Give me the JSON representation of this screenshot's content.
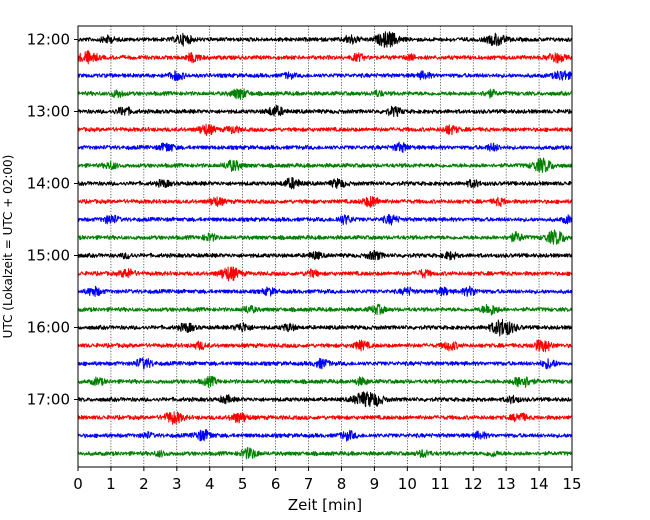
{
  "chart_data": {
    "type": "line",
    "subtype": "helicorder",
    "xlabel": "Zeit  [min]",
    "ylabel": "UTC (Lokalzeit = UTC + 02:00)",
    "xlim": [
      0,
      15
    ],
    "x_ticks": [
      "0",
      "1",
      "2",
      "3",
      "4",
      "5",
      "6",
      "7",
      "8",
      "9",
      "10",
      "11",
      "12",
      "13",
      "14",
      "15"
    ],
    "y_tick_labels": [
      "12:00",
      "13:00",
      "14:00",
      "15:00",
      "16:00",
      "17:00"
    ],
    "grid": "vertical dotted at each minute",
    "line_minutes": 15,
    "start_time": "12:00",
    "color_cycle": [
      "#000000",
      "#ff0000",
      "#0000ff",
      "#008000"
    ],
    "rows": [
      {
        "start": "12:00",
        "events": [
          [
            0.9,
            0.4
          ],
          [
            3.2,
            0.6
          ],
          [
            8.3,
            0.5
          ],
          [
            9.4,
            0.9
          ],
          [
            12.7,
            0.7
          ]
        ]
      },
      {
        "start": "12:15",
        "events": [
          [
            0.3,
            0.7
          ],
          [
            3.5,
            0.5
          ],
          [
            8.5,
            0.4
          ],
          [
            10.1,
            0.3
          ],
          [
            14.5,
            0.6
          ]
        ]
      },
      {
        "start": "12:30",
        "events": [
          [
            3.0,
            0.5
          ],
          [
            6.4,
            0.3
          ],
          [
            10.5,
            0.4
          ],
          [
            14.7,
            0.6
          ]
        ]
      },
      {
        "start": "12:45",
        "events": [
          [
            1.2,
            0.4
          ],
          [
            4.9,
            0.6
          ],
          [
            9.1,
            0.3
          ],
          [
            12.5,
            0.4
          ]
        ]
      },
      {
        "start": "13:00",
        "events": [
          [
            1.4,
            0.5
          ],
          [
            6.0,
            0.6
          ],
          [
            9.6,
            0.5
          ]
        ]
      },
      {
        "start": "13:15",
        "events": [
          [
            3.9,
            0.6
          ],
          [
            4.7,
            0.4
          ],
          [
            11.3,
            0.5
          ]
        ]
      },
      {
        "start": "13:30",
        "events": [
          [
            2.7,
            0.5
          ],
          [
            9.8,
            0.5
          ],
          [
            12.6,
            0.4
          ]
        ]
      },
      {
        "start": "13:45",
        "events": [
          [
            1.0,
            0.4
          ],
          [
            4.7,
            0.6
          ],
          [
            14.1,
            0.8
          ]
        ]
      },
      {
        "start": "14:00",
        "events": [
          [
            2.6,
            0.4
          ],
          [
            6.5,
            0.6
          ],
          [
            7.9,
            0.5
          ],
          [
            12.0,
            0.4
          ]
        ]
      },
      {
        "start": "14:15",
        "events": [
          [
            4.2,
            0.5
          ],
          [
            8.9,
            0.6
          ],
          [
            12.8,
            0.4
          ]
        ]
      },
      {
        "start": "14:30",
        "events": [
          [
            1.0,
            0.5
          ],
          [
            8.1,
            0.5
          ],
          [
            9.5,
            0.5
          ],
          [
            14.9,
            0.4
          ]
        ]
      },
      {
        "start": "14:45",
        "events": [
          [
            4.0,
            0.4
          ],
          [
            13.3,
            0.5
          ],
          [
            14.5,
            0.8
          ]
        ]
      },
      {
        "start": "15:00",
        "events": [
          [
            1.5,
            0.3
          ],
          [
            7.2,
            0.4
          ],
          [
            9.0,
            0.5
          ],
          [
            11.3,
            0.4
          ]
        ]
      },
      {
        "start": "15:15",
        "events": [
          [
            1.5,
            0.5
          ],
          [
            4.6,
            0.8
          ],
          [
            7.1,
            0.4
          ],
          [
            10.5,
            0.4
          ]
        ]
      },
      {
        "start": "15:30",
        "events": [
          [
            0.5,
            0.5
          ],
          [
            5.8,
            0.4
          ],
          [
            10.0,
            0.4
          ],
          [
            11.1,
            0.4
          ],
          [
            11.9,
            0.5
          ]
        ]
      },
      {
        "start": "15:45",
        "events": [
          [
            5.2,
            0.4
          ],
          [
            9.1,
            0.5
          ],
          [
            12.5,
            0.6
          ]
        ]
      },
      {
        "start": "16:00",
        "events": [
          [
            3.3,
            0.5
          ],
          [
            5.0,
            0.5
          ],
          [
            6.4,
            0.4
          ],
          [
            12.9,
            1.0
          ]
        ]
      },
      {
        "start": "16:15",
        "events": [
          [
            3.7,
            0.4
          ],
          [
            8.6,
            0.5
          ],
          [
            11.3,
            0.5
          ],
          [
            14.1,
            0.7
          ]
        ]
      },
      {
        "start": "16:30",
        "events": [
          [
            2.0,
            0.6
          ],
          [
            7.4,
            0.5
          ],
          [
            14.3,
            0.5
          ]
        ]
      },
      {
        "start": "16:45",
        "events": [
          [
            0.6,
            0.4
          ],
          [
            4.0,
            0.5
          ],
          [
            8.6,
            0.4
          ],
          [
            13.5,
            0.7
          ]
        ]
      },
      {
        "start": "17:00",
        "events": [
          [
            4.5,
            0.4
          ],
          [
            8.6,
            0.7
          ],
          [
            9.0,
            0.7
          ],
          [
            13.2,
            0.4
          ]
        ]
      },
      {
        "start": "17:15",
        "events": [
          [
            2.9,
            0.7
          ],
          [
            4.9,
            0.6
          ],
          [
            13.4,
            0.5
          ]
        ]
      },
      {
        "start": "17:30",
        "events": [
          [
            2.1,
            0.3
          ],
          [
            3.8,
            0.6
          ],
          [
            8.2,
            0.5
          ],
          [
            12.2,
            0.4
          ]
        ]
      },
      {
        "start": "17:45",
        "events": [
          [
            2.5,
            0.3
          ],
          [
            5.2,
            0.6
          ],
          [
            10.5,
            0.4
          ],
          [
            12.6,
            0.3
          ]
        ]
      }
    ]
  }
}
